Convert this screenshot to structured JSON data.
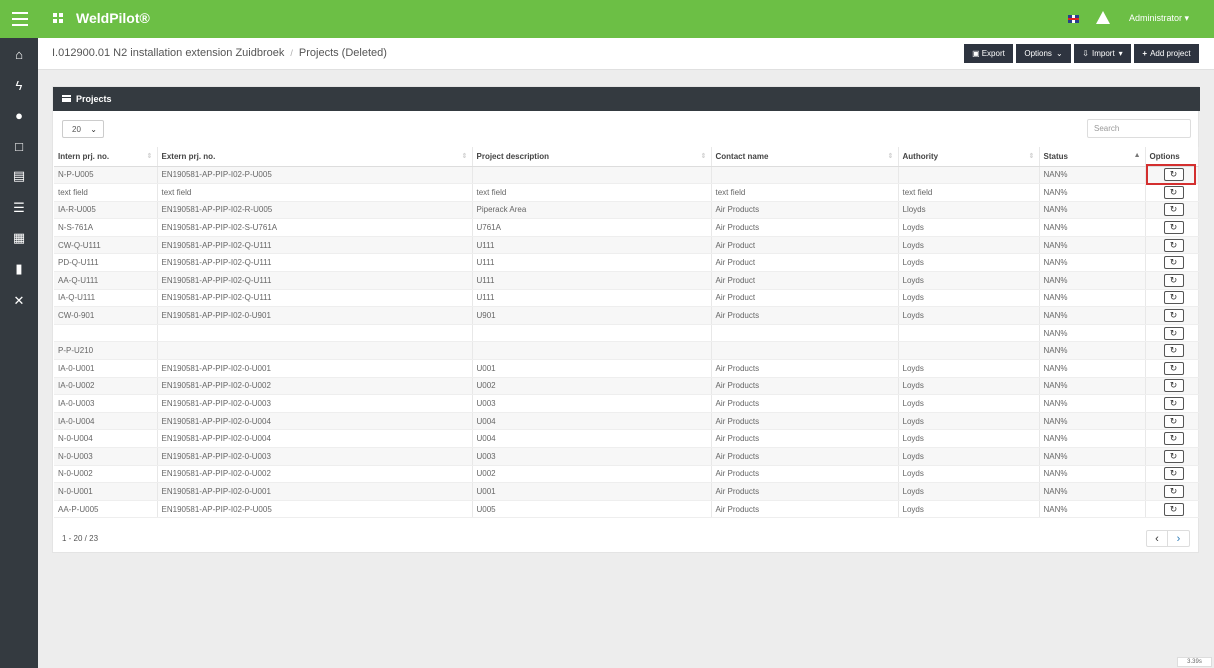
{
  "topbar": {
    "brand": "WeldPilot®",
    "user": "Administrator ▾"
  },
  "breadcrumb": {
    "project": "I.012900.01 N2 installation extension Zuidbroek",
    "page": "Projects (Deleted)"
  },
  "toolbar": {
    "export": "Export",
    "options": "Options",
    "import": "Import",
    "add_project": "Add project"
  },
  "panel": {
    "title": "Projects",
    "page_size": "20",
    "search_placeholder": "Search",
    "info": "1 - 20 / 23"
  },
  "columns": [
    "Intern prj. no.",
    "Extern prj. no.",
    "Project description",
    "Contact name",
    "Authority",
    "Status",
    "Options"
  ],
  "rows": [
    [
      "N-P-U005",
      "EN190581-AP-PIP-I02-P-U005",
      "",
      "",
      "",
      "NAN%"
    ],
    [
      "text field",
      "text field",
      "text field",
      "text field",
      "text field",
      "NAN%"
    ],
    [
      "IA-R-U005",
      "EN190581-AP-PIP-I02-R-U005",
      "Piperack Area",
      "Air Products",
      "Lloyds",
      "NAN%"
    ],
    [
      "N-S-761A",
      "EN190581-AP-PIP-I02-S-U761A",
      "U761A",
      "Air Products",
      "Loyds",
      "NAN%"
    ],
    [
      "CW-Q-U111",
      "EN190581-AP-PIP-I02-Q-U111",
      "U111",
      "Air Product",
      "Loyds",
      "NAN%"
    ],
    [
      "PD-Q-U111",
      "EN190581-AP-PIP-I02-Q-U111",
      "U111",
      "Air Product",
      "Loyds",
      "NAN%"
    ],
    [
      "AA-Q-U111",
      "EN190581-AP-PIP-I02-Q-U111",
      "U111",
      "Air Product",
      "Loyds",
      "NAN%"
    ],
    [
      "IA-Q-U111",
      "EN190581-AP-PIP-I02-Q-U111",
      "U111",
      "Air Product",
      "Loyds",
      "NAN%"
    ],
    [
      "CW-0-901",
      "EN190581-AP-PIP-I02-0-U901",
      "U901",
      "Air Products",
      "Loyds",
      "NAN%"
    ],
    [
      "",
      "",
      "",
      "",
      "",
      "NAN%"
    ],
    [
      "P-P-U210",
      "",
      "",
      "",
      "",
      "NAN%"
    ],
    [
      "IA-0-U001",
      "EN190581-AP-PIP-I02-0-U001",
      "U001",
      "Air Products",
      "Loyds",
      "NAN%"
    ],
    [
      "IA-0-U002",
      "EN190581-AP-PIP-I02-0-U002",
      "U002",
      "Air Products",
      "Loyds",
      "NAN%"
    ],
    [
      "IA-0-U003",
      "EN190581-AP-PIP-I02-0-U003",
      "U003",
      "Air Products",
      "Loyds",
      "NAN%"
    ],
    [
      "IA-0-U004",
      "EN190581-AP-PIP-I02-0-U004",
      "U004",
      "Air Products",
      "Loyds",
      "NAN%"
    ],
    [
      "N-0-U004",
      "EN190581-AP-PIP-I02-0-U004",
      "U004",
      "Air Products",
      "Loyds",
      "NAN%"
    ],
    [
      "N-0-U003",
      "EN190581-AP-PIP-I02-0-U003",
      "U003",
      "Air Products",
      "Loyds",
      "NAN%"
    ],
    [
      "N-0-U002",
      "EN190581-AP-PIP-I02-0-U002",
      "U002",
      "Air Products",
      "Loyds",
      "NAN%"
    ],
    [
      "N-0-U001",
      "EN190581-AP-PIP-I02-0-U001",
      "U001",
      "Air Products",
      "Loyds",
      "NAN%"
    ],
    [
      "AA-P-U005",
      "EN190581-AP-PIP-I02-P-U005",
      "U005",
      "Air Products",
      "Loyds",
      "NAN%"
    ]
  ],
  "timer": "3.39s",
  "colors": {
    "accent": "#6cbf45",
    "dark": "#343a40",
    "highlight": "#d32f2f"
  }
}
